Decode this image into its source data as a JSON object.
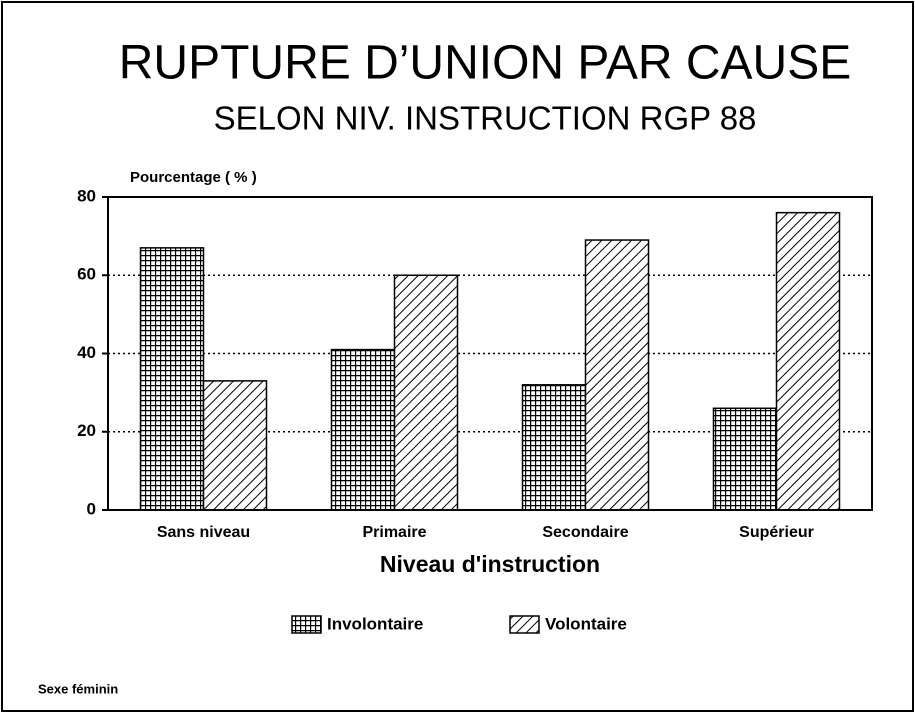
{
  "chart_data": {
    "type": "bar",
    "title": "RUPTURE D’UNION PAR CAUSE",
    "subtitle": "SELON NIV. INSTRUCTION RGP 88",
    "y_label": "Pourcentage ( % )",
    "x_label": "Niveau d'instruction",
    "note": "Sexe féminin",
    "categories": [
      "Sans niveau",
      "Primaire",
      "Secondaire",
      "Supérieur"
    ],
    "series": [
      {
        "name": "Involontaire",
        "color": "#000000",
        "pattern": "grid",
        "values": [
          67,
          41,
          32,
          26
        ]
      },
      {
        "name": "Volontaire",
        "color": "#000000",
        "pattern": "diagonal",
        "values": [
          33,
          60,
          69,
          76
        ]
      }
    ],
    "ylim": [
      0,
      80
    ],
    "yticks": [
      0,
      20,
      40,
      60,
      80
    ],
    "grid": true
  }
}
